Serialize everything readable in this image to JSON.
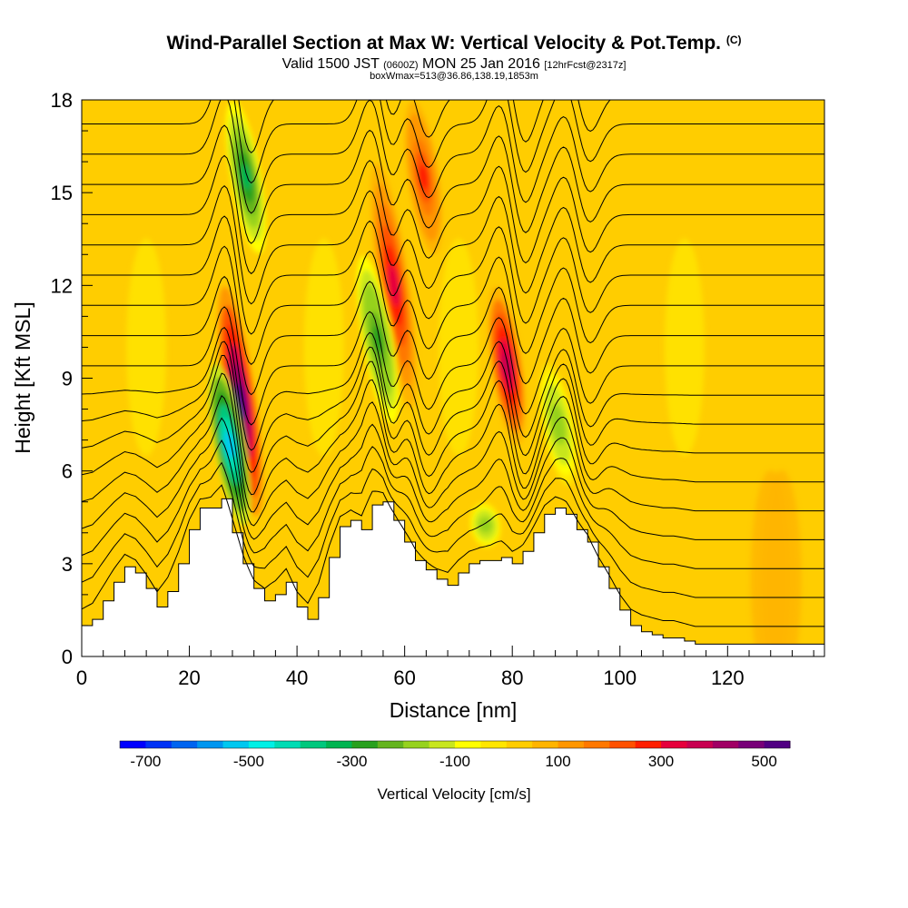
{
  "header": {
    "title": "Wind-Parallel Section at Max W: Vertical Velocity & Pot.Temp.",
    "title_mark": "(C)",
    "valid_prefix": "Valid 1500 JST",
    "valid_utc": "(0600Z)",
    "valid_date": "MON 25 Jan 2016",
    "forecast": "[12hrFcst@2317z]",
    "box_info": "boxWmax=513@36.86,138.19,1853m"
  },
  "chart_data": {
    "type": "heatmap",
    "xlabel": "Distance [nm]",
    "ylabel": "Height [Kft MSL]",
    "xlim": [
      0,
      138
    ],
    "ylim": [
      0,
      18
    ],
    "x_ticks": [
      0,
      20,
      40,
      60,
      80,
      100,
      120
    ],
    "y_ticks": [
      0,
      3,
      6,
      9,
      12,
      15,
      18
    ],
    "colorbar": {
      "label": "Vertical Velocity [cm/s]",
      "ticks": [
        -700,
        -500,
        -300,
        -100,
        100,
        300,
        500
      ],
      "range": [
        -750,
        550
      ],
      "colors": [
        "#0000ff",
        "#0032f5",
        "#0064f0",
        "#0096f0",
        "#00c8f0",
        "#00f0e6",
        "#00dcb4",
        "#00c87d",
        "#00b450",
        "#28a01e",
        "#64b41e",
        "#96d21e",
        "#c8e61e",
        "#ffff00",
        "#ffe600",
        "#ffcd00",
        "#ffb400",
        "#ff9600",
        "#ff7800",
        "#ff5000",
        "#ff1e00",
        "#e6003c",
        "#c80050",
        "#a00064",
        "#780078",
        "#500082"
      ]
    },
    "updrafts": [
      {
        "x": 29.5,
        "z_top": 12,
        "z_bottom": 4.5,
        "peak": 520
      },
      {
        "x": 58.0,
        "z_top": 16,
        "z_bottom": 8.0,
        "peak": 300
      },
      {
        "x": 63.5,
        "z_top": 18,
        "z_bottom": 13,
        "peak": 250
      },
      {
        "x": 79.0,
        "z_top": 12,
        "z_bottom": 6.8,
        "peak": 380
      }
    ],
    "downdrafts": [
      {
        "x": 27.5,
        "z_top": 9.5,
        "z_bottom": 4.2,
        "peak": -520
      },
      {
        "x": 30.5,
        "z_top": 18,
        "z_bottom": 13,
        "peak": -350
      },
      {
        "x": 55.0,
        "z_top": 13,
        "z_bottom": 7.5,
        "peak": -280
      },
      {
        "x": 75.0,
        "z_top": 5,
        "z_bottom": 3.5,
        "peak": -200
      },
      {
        "x": 88.5,
        "z_top": 9.5,
        "z_bottom": 5.5,
        "peak": -200
      }
    ],
    "terrain": {
      "x": [
        0,
        2,
        4,
        6,
        8,
        10,
        12,
        14,
        16,
        18,
        20,
        22,
        24,
        26,
        28,
        30,
        32,
        34,
        36,
        38,
        40,
        42,
        44,
        46,
        48,
        50,
        52,
        54,
        56,
        58,
        60,
        62,
        64,
        66,
        68,
        70,
        72,
        74,
        76,
        78,
        80,
        82,
        84,
        86,
        88,
        90,
        92,
        94,
        96,
        98,
        100,
        102,
        104,
        106,
        108,
        110,
        112,
        114,
        116,
        118,
        120,
        122,
        124,
        126,
        128,
        130,
        132,
        134,
        136,
        138
      ],
      "z": [
        1.0,
        1.2,
        1.8,
        2.4,
        2.9,
        2.7,
        2.2,
        1.6,
        2.1,
        3.0,
        4.1,
        4.8,
        4.8,
        5.1,
        4.0,
        3.0,
        2.2,
        1.8,
        2.0,
        2.4,
        1.6,
        1.2,
        1.9,
        3.2,
        4.2,
        4.4,
        4.1,
        4.9,
        5.0,
        4.4,
        3.7,
        3.1,
        2.8,
        2.5,
        2.3,
        2.7,
        3.0,
        3.1,
        3.1,
        3.2,
        3.0,
        3.4,
        4.0,
        4.6,
        4.8,
        4.6,
        4.1,
        3.7,
        2.9,
        2.2,
        1.5,
        1.0,
        0.8,
        0.7,
        0.6,
        0.6,
        0.5,
        0.4,
        0.4,
        0.4,
        0.4,
        0.4,
        0.4,
        0.4,
        0.4,
        0.4,
        0.4,
        0.4,
        0.4,
        0.4
      ]
    },
    "theta_contours": {
      "interval_c": 1,
      "surface_value": 4,
      "top_value": 22
    }
  }
}
